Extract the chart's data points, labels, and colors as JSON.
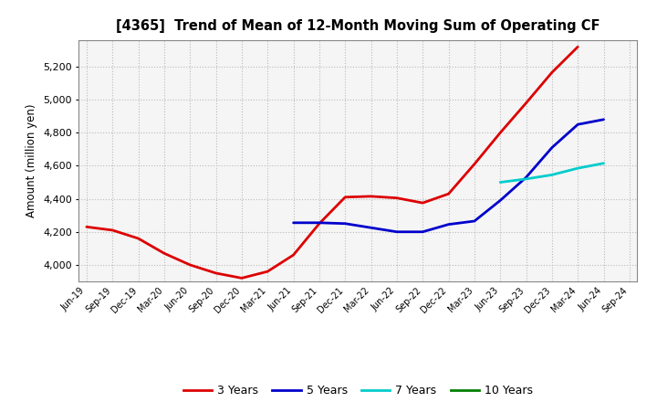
{
  "title": "[4365]  Trend of Mean of 12-Month Moving Sum of Operating CF",
  "ylabel": "Amount (million yen)",
  "background_color": "#ffffff",
  "plot_bg_color": "#f5f5f5",
  "grid_color": "#bbbbbb",
  "ylim": [
    3900,
    5360
  ],
  "yticks": [
    4000,
    4200,
    4400,
    4600,
    4800,
    5000,
    5200
  ],
  "x_labels": [
    "Jun-19",
    "Sep-19",
    "Dec-19",
    "Mar-20",
    "Jun-20",
    "Sep-20",
    "Dec-20",
    "Mar-21",
    "Jun-21",
    "Sep-21",
    "Dec-21",
    "Mar-22",
    "Jun-22",
    "Sep-22",
    "Dec-22",
    "Mar-23",
    "Jun-23",
    "Sep-23",
    "Dec-23",
    "Mar-24",
    "Jun-24",
    "Sep-24"
  ],
  "series_order": [
    "3 Years",
    "5 Years",
    "7 Years",
    "10 Years"
  ],
  "series": {
    "3 Years": {
      "color": "#dd0000",
      "data_x": [
        0,
        1,
        2,
        3,
        4,
        5,
        6,
        7,
        8,
        9,
        10,
        11,
        12,
        13,
        14,
        15,
        16,
        17,
        18,
        19
      ],
      "data_y": [
        4230,
        4210,
        4160,
        4070,
        4000,
        3950,
        3920,
        3960,
        4060,
        4250,
        4410,
        4415,
        4405,
        4375,
        4430,
        4610,
        4800,
        4980,
        5165,
        5320
      ]
    },
    "5 Years": {
      "color": "#0000cc",
      "data_x": [
        8,
        9,
        10,
        11,
        12,
        13,
        14,
        15,
        16,
        17,
        18,
        19,
        20
      ],
      "data_y": [
        4255,
        4255,
        4250,
        4225,
        4200,
        4200,
        4245,
        4265,
        4390,
        4530,
        4710,
        4850,
        4880
      ]
    },
    "7 Years": {
      "color": "#00cccc",
      "data_x": [
        16,
        17,
        18,
        19,
        20
      ],
      "data_y": [
        4500,
        4520,
        4545,
        4585,
        4615
      ]
    },
    "10 Years": {
      "color": "#008000",
      "data_x": [],
      "data_y": []
    }
  },
  "legend_labels": [
    "3 Years",
    "5 Years",
    "7 Years",
    "10 Years"
  ],
  "legend_colors": [
    "#dd0000",
    "#0000cc",
    "#00cccc",
    "#008000"
  ]
}
